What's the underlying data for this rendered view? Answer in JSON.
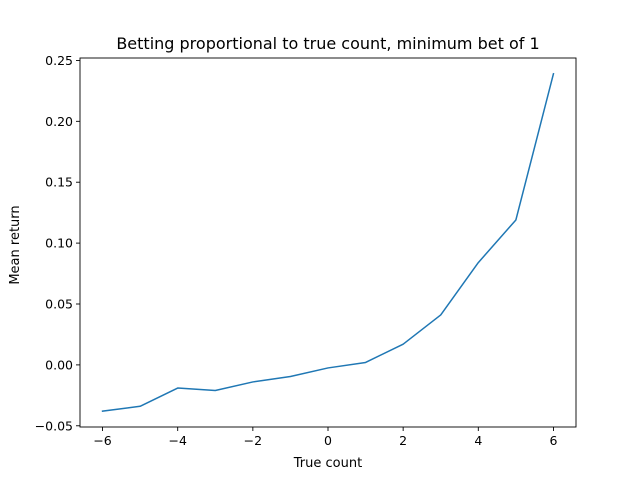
{
  "chart_data": {
    "type": "line",
    "title": "Betting proportional to true count, minimum bet of 1",
    "xlabel": "True count",
    "ylabel": "Mean return",
    "xlim": [
      -6.6,
      6.6
    ],
    "ylim": [
      -0.051,
      0.252
    ],
    "xticks": [
      -6,
      -4,
      -2,
      0,
      2,
      4,
      6
    ],
    "xtick_labels": [
      "−6",
      "−4",
      "−2",
      "0",
      "2",
      "4",
      "6"
    ],
    "yticks": [
      -0.05,
      0.0,
      0.05,
      0.1,
      0.15,
      0.2,
      0.25
    ],
    "ytick_labels": [
      "−0.05",
      "0.00",
      "0.05",
      "0.10",
      "0.15",
      "0.20",
      "0.25"
    ],
    "grid": false,
    "series": [
      {
        "color": "#1f77b4",
        "x": [
          -6,
          -5,
          -4,
          -3,
          -2,
          -1,
          0,
          1,
          2,
          3,
          4,
          5,
          6
        ],
        "y": [
          -0.038,
          -0.034,
          -0.019,
          -0.021,
          -0.014,
          -0.0095,
          -0.0025,
          0.002,
          0.017,
          0.041,
          0.084,
          0.119,
          0.239
        ]
      }
    ]
  }
}
